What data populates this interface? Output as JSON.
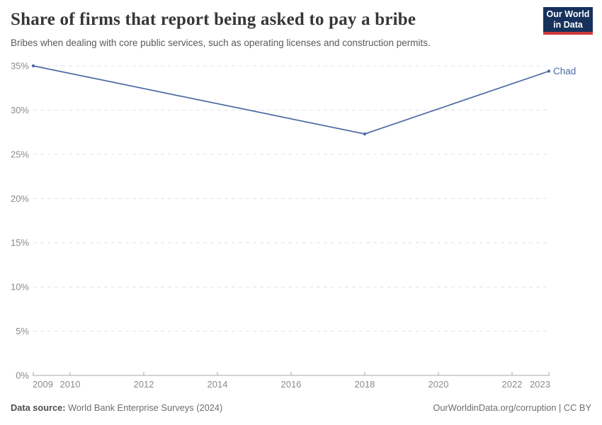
{
  "header": {
    "title": "Share of firms that report being asked to pay a bribe",
    "subtitle": "Bribes when dealing with core public services, such as operating licenses and construction permits."
  },
  "logo": {
    "line1": "Our World",
    "line2": "in Data",
    "bg_color": "#16315c",
    "bar_color": "#d0393c"
  },
  "chart_data": {
    "type": "line",
    "title": "Share of firms that report being asked to pay a bribe",
    "xlabel": "",
    "ylabel": "",
    "xlim": [
      2009,
      2023
    ],
    "ylim": [
      0,
      35
    ],
    "grid": "dashed-horizontal",
    "legend_position": "end-of-line-label",
    "grid_color": "#e1e1e1",
    "axis_color": "#a8a8a8",
    "tick_label_color": "#8b8b8b",
    "series": [
      {
        "name": "Chad",
        "color": "#4c6aa5",
        "points": [
          {
            "x": 2009,
            "y": 35.0
          },
          {
            "x": 2018,
            "y": 27.3
          },
          {
            "x": 2023,
            "y": 34.4
          }
        ]
      }
    ],
    "x_ticks": [
      {
        "value": 2009,
        "label": "2009"
      },
      {
        "value": 2010,
        "label": "2010"
      },
      {
        "value": 2012,
        "label": "2012"
      },
      {
        "value": 2014,
        "label": "2014"
      },
      {
        "value": 2016,
        "label": "2016"
      },
      {
        "value": 2018,
        "label": "2018"
      },
      {
        "value": 2020,
        "label": "2020"
      },
      {
        "value": 2022,
        "label": "2022"
      },
      {
        "value": 2023,
        "label": "2023"
      }
    ],
    "y_ticks": [
      {
        "value": 0,
        "label": "0%"
      },
      {
        "value": 5,
        "label": "5%"
      },
      {
        "value": 10,
        "label": "10%"
      },
      {
        "value": 15,
        "label": "15%"
      },
      {
        "value": 20,
        "label": "20%"
      },
      {
        "value": 25,
        "label": "25%"
      },
      {
        "value": 30,
        "label": "30%"
      },
      {
        "value": 35,
        "label": "35%"
      }
    ]
  },
  "footer": {
    "datasource_label": "Data source:",
    "datasource_value": " World Bank Enterprise Surveys (2024)",
    "right_note": "OurWorldinData.org/corruption | CC BY"
  }
}
